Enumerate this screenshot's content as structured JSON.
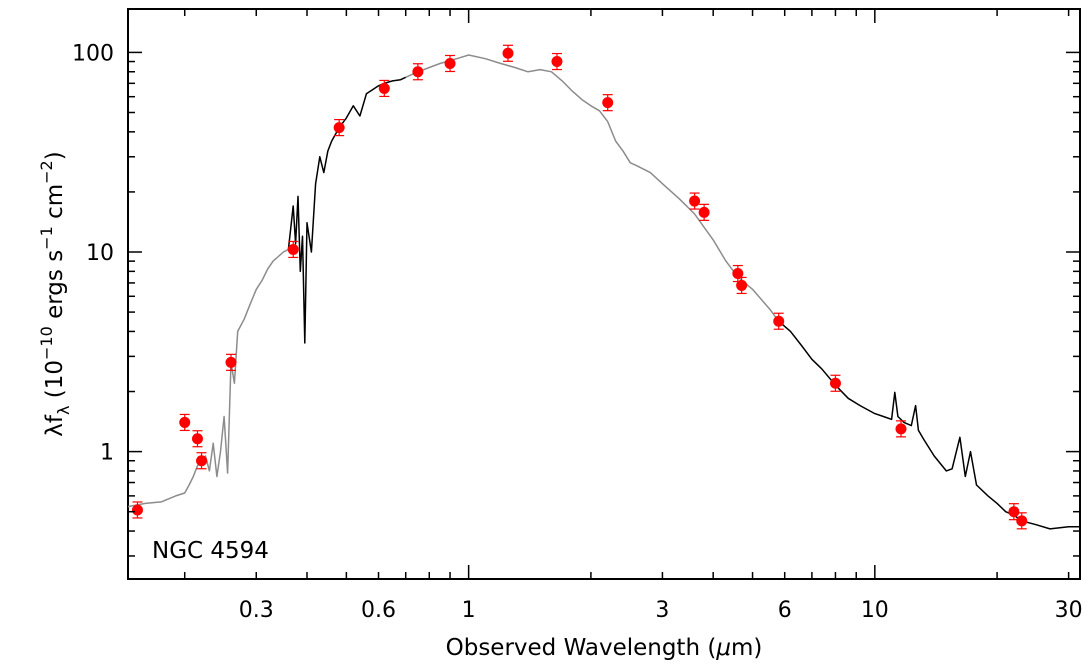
{
  "chart_data": {
    "type": "scatter",
    "object_label": "NGC 4594",
    "xlabel": {
      "pre": "Observed Wavelength (",
      "mu": "μ",
      "post": "m)"
    },
    "ylabel": {
      "lam": "λf",
      "lam_sub": "λ",
      "mid": " (10",
      "exp1": "−10",
      "units": " ergs s",
      "exp2": "−1",
      "cm": " cm",
      "exp3": "−2",
      "close": ")"
    },
    "x_scale": "log",
    "y_scale": "log",
    "xlim": [
      0.145,
      32
    ],
    "ylim": [
      0.23,
      165
    ],
    "x_ticks": [
      {
        "value": 0.3,
        "label": "0.3"
      },
      {
        "value": 0.6,
        "label": "0.6"
      },
      {
        "value": 1,
        "label": "1"
      },
      {
        "value": 3,
        "label": "3"
      },
      {
        "value": 6,
        "label": "6"
      },
      {
        "value": 10,
        "label": "10"
      },
      {
        "value": 30,
        "label": "30"
      }
    ],
    "y_ticks": [
      {
        "value": 1,
        "label": "1"
      },
      {
        "value": 10,
        "label": "10"
      },
      {
        "value": 100,
        "label": "100"
      }
    ],
    "grid": false,
    "colors": {
      "photometry": "#ff0000",
      "spectrum_gray": "#8c8c8c",
      "spectrum_black": "#000000"
    },
    "series": [
      {
        "kind": "line",
        "color": "#8c8c8c",
        "x": [
          0.145,
          0.16,
          0.175,
          0.19,
          0.2,
          0.205,
          0.21,
          0.215,
          0.22,
          0.225,
          0.23,
          0.235,
          0.24,
          0.245,
          0.25,
          0.255,
          0.26,
          0.265,
          0.27,
          0.28,
          0.29,
          0.3,
          0.31,
          0.32,
          0.33,
          0.34,
          0.35,
          0.36
        ],
        "y": [
          0.53,
          0.55,
          0.56,
          0.6,
          0.62,
          0.68,
          0.75,
          0.85,
          0.9,
          0.95,
          0.8,
          1.1,
          0.75,
          1.0,
          1.5,
          0.78,
          2.8,
          2.2,
          4.0,
          4.6,
          5.5,
          6.5,
          7.2,
          8.2,
          9.0,
          9.5,
          10.0,
          10.3
        ]
      },
      {
        "kind": "line",
        "color": "#000000",
        "x": [
          0.36,
          0.37,
          0.375,
          0.38,
          0.385,
          0.39,
          0.395,
          0.4,
          0.41,
          0.42,
          0.43,
          0.44,
          0.45,
          0.46,
          0.48,
          0.5,
          0.52,
          0.54,
          0.56,
          0.58,
          0.6,
          0.62,
          0.65,
          0.68,
          0.7
        ],
        "y": [
          10.3,
          17,
          11,
          19,
          8,
          12,
          3.5,
          14,
          10,
          22,
          30,
          25,
          32,
          36,
          42,
          47,
          54,
          48,
          62,
          65,
          68,
          70,
          72,
          73,
          75
        ]
      },
      {
        "kind": "line",
        "color": "#8c8c8c",
        "x": [
          0.7,
          0.75,
          0.8,
          0.85,
          0.9,
          0.95,
          1.0,
          1.1,
          1.2,
          1.3,
          1.4,
          1.5,
          1.6,
          1.7,
          1.8,
          1.9,
          2.0,
          2.1,
          2.2,
          2.3,
          2.4,
          2.5,
          2.6,
          2.8,
          3.0,
          3.3,
          3.6,
          4.0,
          4.3,
          4.6,
          5.0,
          5.5,
          5.8
        ],
        "y": [
          75,
          80,
          84,
          88,
          91,
          94,
          97,
          93,
          88,
          84,
          80,
          82,
          80,
          72,
          64,
          58,
          54,
          51,
          45,
          36,
          32,
          28,
          27,
          25,
          22,
          18.5,
          15.5,
          11.5,
          9.0,
          7.5,
          6.5,
          5.2,
          4.5
        ]
      },
      {
        "kind": "line",
        "color": "#000000",
        "x": [
          5.8,
          6.2,
          6.6,
          7.0,
          7.4,
          8.0,
          8.6,
          9.2,
          10.0,
          10.5,
          11.0,
          11.2,
          11.4,
          11.8,
          12.3,
          12.6,
          12.8,
          13.2,
          14.0,
          15.0,
          15.5,
          16.2,
          16.7,
          17.2,
          17.8,
          19.0,
          20.0,
          21.0,
          22.0,
          23.0,
          25.0,
          27.0,
          30.0,
          32.0
        ],
        "y": [
          4.5,
          4.0,
          3.4,
          2.9,
          2.6,
          2.15,
          1.85,
          1.7,
          1.55,
          1.5,
          1.45,
          1.98,
          1.5,
          1.4,
          1.35,
          1.7,
          1.28,
          1.15,
          0.95,
          0.8,
          0.82,
          1.18,
          0.75,
          1.0,
          0.68,
          0.6,
          0.55,
          0.5,
          0.48,
          0.45,
          0.43,
          0.41,
          0.42,
          0.42
        ]
      },
      {
        "kind": "points",
        "color": "#ff0000",
        "x": [
          0.153,
          0.2,
          0.215,
          0.22,
          0.26,
          0.37,
          0.48,
          0.62,
          0.75,
          0.9,
          1.25,
          1.65,
          2.2,
          3.6,
          3.8,
          4.6,
          4.7,
          5.8,
          8.0,
          11.6,
          22.0,
          23.0
        ],
        "y": [
          0.51,
          1.4,
          1.16,
          0.9,
          2.8,
          10.3,
          42,
          66,
          80,
          88,
          99,
          90,
          56,
          18,
          15.8,
          7.8,
          6.8,
          4.5,
          2.2,
          1.3,
          0.5,
          0.45
        ]
      }
    ]
  }
}
